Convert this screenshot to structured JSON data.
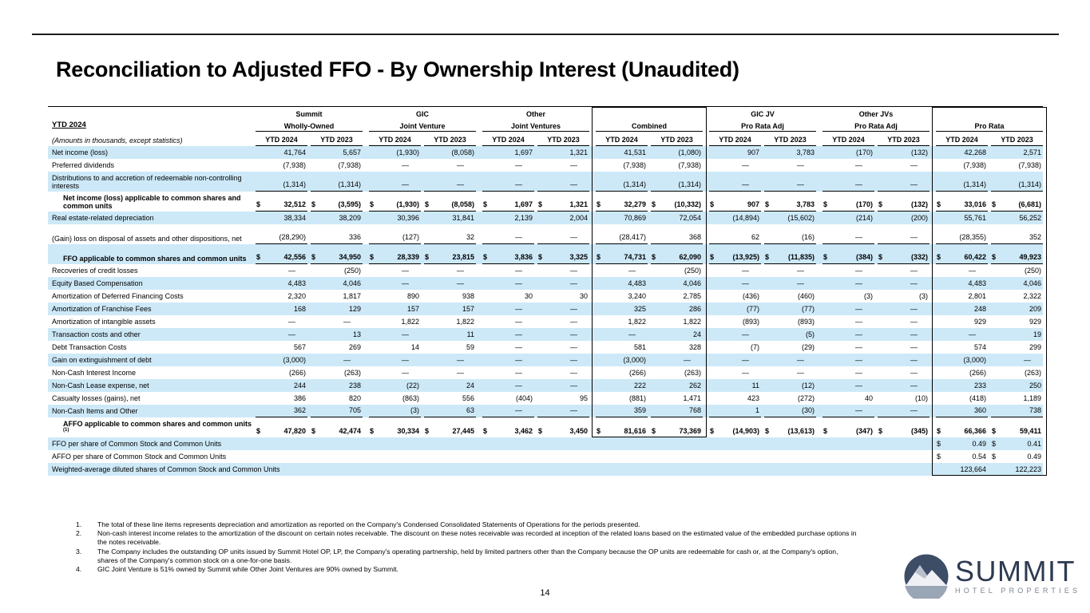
{
  "title": "Reconciliation to Adjusted FFO - By Ownership Interest (Unaudited)",
  "page": {
    "number": "14"
  },
  "colors": {
    "stripe": "#cde9f8",
    "logo_navy": "#2d3b52",
    "logo_gray": "#7c8494"
  },
  "logo": {
    "name": "SUMMIT",
    "subtitle": "HOTEL PROPERTIES",
    "icon": "mountain-in-circle"
  },
  "table": {
    "period_label": "YTD 2024",
    "amounts_note": "(Amounts in thousands, except statistics)",
    "col_headers": [
      "YTD 2024",
      "YTD 2023"
    ],
    "groups": [
      {
        "top": "Summit",
        "bottom": "Wholly-Owned",
        "boxed": false
      },
      {
        "top": "GIC",
        "bottom": "Joint Venture",
        "boxed": false
      },
      {
        "top": "Other",
        "bottom": "Joint Ventures",
        "boxed": false
      },
      {
        "top": "",
        "bottom": "Combined",
        "boxed": true,
        "box_end_row": 19
      },
      {
        "top": "GIC JV",
        "bottom": "Pro Rata Adj",
        "boxed": false
      },
      {
        "top": "Other JVs",
        "bottom": "Pro Rata Adj",
        "boxed": false
      },
      {
        "top": "",
        "bottom": "Pro Rata",
        "boxed": true,
        "box_end_row": 22
      }
    ],
    "rows": [
      {
        "label": "Net income (loss)",
        "values": [
          "41,764",
          "5,657",
          "(1,930)",
          "(8,058)",
          "1,697",
          "1,321",
          "41,531",
          "(1,080)",
          "907",
          "3,783",
          "(170)",
          "(132)",
          "42,268",
          "2,571"
        ]
      },
      {
        "label": "Preferred dividends",
        "values": [
          "(7,938)",
          "(7,938)",
          "—",
          "—",
          "—",
          "—",
          "(7,938)",
          "(7,938)",
          "—",
          "—",
          "—",
          "—",
          "(7,938)",
          "(7,938)"
        ]
      },
      {
        "label": "Distributions to and accretion of redeemable non-controlling interests",
        "tall": true,
        "underline": true,
        "values": [
          "(1,314)",
          "(1,314)",
          "—",
          "—",
          "—",
          "—",
          "(1,314)",
          "(1,314)",
          "—",
          "—",
          "—",
          "—",
          "(1,314)",
          "(1,314)"
        ]
      },
      {
        "label": "Net income (loss) applicable to common shares and common units",
        "bold": true,
        "indent": true,
        "dollars": "all",
        "tall": true,
        "underline": true,
        "values": [
          "32,512",
          "(3,595)",
          "(1,930)",
          "(8,058)",
          "1,697",
          "1,321",
          "32,279",
          "(10,332)",
          "907",
          "3,783",
          "(170)",
          "(132)",
          "33,016",
          "(6,681)"
        ]
      },
      {
        "label": "Real estate-related depreciation",
        "values": [
          "38,334",
          "38,209",
          "30,396",
          "31,841",
          "2,139",
          "2,004",
          "70,869",
          "72,054",
          "(14,894)",
          "(15,602)",
          "(214)",
          "(200)",
          "55,761",
          "56,252"
        ]
      },
      {
        "label": "(Gain) loss on disposal of assets and other dispositions, net",
        "tall": true,
        "underline": true,
        "values": [
          "(28,290)",
          "336",
          "(127)",
          "32",
          "—",
          "—",
          "(28,417)",
          "368",
          "62",
          "(16)",
          "—",
          "—",
          "(28,355)",
          "352"
        ]
      },
      {
        "label": "FFO applicable to common shares and common units",
        "bold": true,
        "indent": true,
        "dollars": "all",
        "tall": true,
        "underline": true,
        "values": [
          "42,556",
          "34,950",
          "28,339",
          "23,815",
          "3,836",
          "3,325",
          "74,731",
          "62,090",
          "(13,925)",
          "(11,835)",
          "(384)",
          "(332)",
          "60,422",
          "49,923"
        ]
      },
      {
        "label": "Recoveries of credit losses",
        "values": [
          "—",
          "(250)",
          "—",
          "—",
          "—",
          "—",
          "—",
          "(250)",
          "—",
          "—",
          "—",
          "—",
          "—",
          "(250)"
        ]
      },
      {
        "label": "Equity Based Compensation",
        "values": [
          "4,483",
          "4,046",
          "—",
          "—",
          "—",
          "—",
          "4,483",
          "4,046",
          "—",
          "—",
          "—",
          "—",
          "4,483",
          "4,046"
        ]
      },
      {
        "label": "Amortization of Deferred Financing Costs",
        "values": [
          "2,320",
          "1,817",
          "890",
          "938",
          "30",
          "30",
          "3,240",
          "2,785",
          "(436)",
          "(460)",
          "(3)",
          "(3)",
          "2,801",
          "2,322"
        ]
      },
      {
        "label": "Amortization of Franchise Fees",
        "values": [
          "168",
          "129",
          "157",
          "157",
          "—",
          "—",
          "325",
          "286",
          "(77)",
          "(77)",
          "—",
          "—",
          "248",
          "209"
        ]
      },
      {
        "label": "Amortization of intangible assets",
        "values": [
          "—",
          "—",
          "1,822",
          "1,822",
          "—",
          "—",
          "1,822",
          "1,822",
          "(893)",
          "(893)",
          "—",
          "—",
          "929",
          "929"
        ]
      },
      {
        "label": "Transaction costs and other",
        "values": [
          "—",
          "13",
          "—",
          "11",
          "—",
          "—",
          "—",
          "24",
          "—",
          "(5)",
          "—",
          "—",
          "—",
          "19"
        ]
      },
      {
        "label": "Debt Transaction Costs",
        "values": [
          "567",
          "269",
          "14",
          "59",
          "—",
          "—",
          "581",
          "328",
          "(7)",
          "(29)",
          "—",
          "—",
          "574",
          "299"
        ]
      },
      {
        "label": "Gain on extinguishment of debt",
        "values": [
          "(3,000)",
          "—",
          "—",
          "—",
          "—",
          "—",
          "(3,000)",
          "—",
          "—",
          "—",
          "—",
          "—",
          "(3,000)",
          "—"
        ]
      },
      {
        "label": "Non-Cash Interest Income",
        "values": [
          "(266)",
          "(263)",
          "—",
          "—",
          "—",
          "—",
          "(266)",
          "(263)",
          "—",
          "—",
          "—",
          "—",
          "(266)",
          "(263)"
        ]
      },
      {
        "label": "Non-Cash Lease expense, net",
        "values": [
          "244",
          "238",
          "(22)",
          "24",
          "—",
          "—",
          "222",
          "262",
          "11",
          "(12)",
          "—",
          "—",
          "233",
          "250"
        ]
      },
      {
        "label": "Casualty losses (gains), net",
        "values": [
          "386",
          "820",
          "(863)",
          "556",
          "(404)",
          "95",
          "(881)",
          "1,471",
          "423",
          "(272)",
          "40",
          "(10)",
          "(418)",
          "1,189"
        ]
      },
      {
        "label": "Non-Cash Items and Other",
        "underline": true,
        "values": [
          "362",
          "705",
          "(3)",
          "63",
          "—",
          "—",
          "359",
          "768",
          "1",
          "(30)",
          "—",
          "—",
          "360",
          "738"
        ]
      },
      {
        "label": "AFFO applicable to common shares and common units",
        "sup": "(1)",
        "bold": true,
        "indent": true,
        "dollars": "all",
        "tall": true,
        "values": [
          "47,820",
          "42,474",
          "30,334",
          "27,445",
          "3,462",
          "3,450",
          "81,616",
          "73,369",
          "(14,903)",
          "(13,613)",
          "(347)",
          "(345)",
          "66,366",
          "59,411"
        ]
      },
      {
        "label": "FFO per share of Common Stock and Common Units",
        "dollars": "prorata",
        "values": [
          "",
          "",
          "",
          "",
          "",
          "",
          "",
          "",
          "",
          "",
          "",
          "",
          "0.49",
          "0.41"
        ]
      },
      {
        "label": "AFFO per share of Common Stock and Common Units",
        "dollars": "prorata",
        "values": [
          "",
          "",
          "",
          "",
          "",
          "",
          "",
          "",
          "",
          "",
          "",
          "",
          "0.54",
          "0.49"
        ]
      },
      {
        "label": "Weighted-average diluted shares of Common Stock and Common Units",
        "nowrap": true,
        "values": [
          "",
          "",
          "",
          "",
          "",
          "",
          "",
          "",
          "",
          "",
          "",
          "",
          "123,664",
          "122,223"
        ]
      }
    ]
  },
  "footnotes": [
    {
      "num": "1.",
      "text": "The total of these line items represents depreciation and amortization as reported on the Company's Condensed Consolidated Statements of Operations for the periods presented."
    },
    {
      "num": "2.",
      "text": "Non-cash interest income relates to the amortization of the discount on certain notes receivable. The discount on these notes receivable was recorded at inception of the related loans based on the estimated value of the embedded purchase options in the notes receivable."
    },
    {
      "num": "3.",
      "text": "The Company includes the outstanding OP units issued by Summit Hotel OP, LP, the Company's operating partnership, held by limited partners other than the Company because the OP units are redeemable for cash or, at the Company's option, shares of the Company's common stock on a one-for-one basis."
    },
    {
      "num": "4.",
      "text": "GIC Joint Venture is 51% owned by Summit while Other Joint Ventures are 90% owned by Summit."
    }
  ]
}
